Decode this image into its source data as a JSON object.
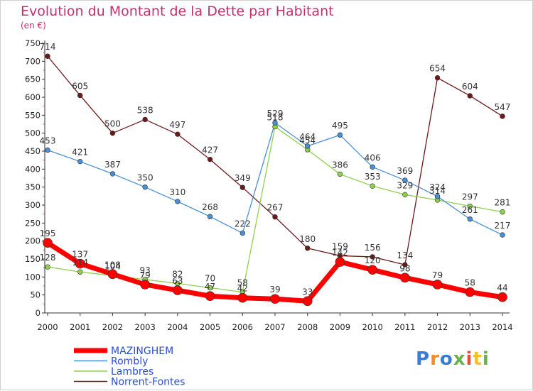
{
  "header": {
    "title": "Evolution du Montant de la Dette par Habitant",
    "unit": "(en €)"
  },
  "brand": {
    "text": "Proxiti"
  },
  "chart_data": {
    "type": "line",
    "title": "Evolution du Montant de la Dette par Habitant",
    "subtitle": "(en €)",
    "x": [
      2000,
      2001,
      2002,
      2003,
      2004,
      2005,
      2006,
      2007,
      2008,
      2009,
      2010,
      2011,
      2012,
      2013,
      2014
    ],
    "ylim": [
      0,
      750
    ],
    "yticks": [
      0,
      50,
      100,
      150,
      200,
      250,
      300,
      350,
      400,
      450,
      500,
      550,
      600,
      650,
      700,
      750
    ],
    "grid": false,
    "legend_position": "bottom-left",
    "series": [
      {
        "name": "Norrent-Fontes",
        "color": "#6b1a1a",
        "width": 1.3,
        "marker": 3.4,
        "values": [
          714,
          605,
          500,
          538,
          497,
          427,
          349,
          267,
          180,
          159,
          156,
          134,
          654,
          604,
          547
        ]
      },
      {
        "name": "Lambres",
        "color": "#8fd14f",
        "width": 1.3,
        "marker": 3.4,
        "values": [
          128,
          114,
          104,
          93,
          82,
          70,
          58,
          518,
          454,
          386,
          353,
          329,
          314,
          297,
          281
        ]
      },
      {
        "name": "Rombly",
        "color": "#4a8fd4",
        "width": 1.3,
        "marker": 3.4,
        "values": [
          453,
          421,
          387,
          350,
          310,
          268,
          222,
          529,
          464,
          495,
          406,
          369,
          324,
          261,
          217
        ]
      },
      {
        "name": "MAZINGHEM",
        "color": "#ff0000",
        "width": 7,
        "marker": 6.5,
        "values": [
          195,
          137,
          108,
          79,
          63,
          47,
          42,
          39,
          33,
          142,
          120,
          98,
          79,
          58,
          44
        ]
      }
    ]
  }
}
